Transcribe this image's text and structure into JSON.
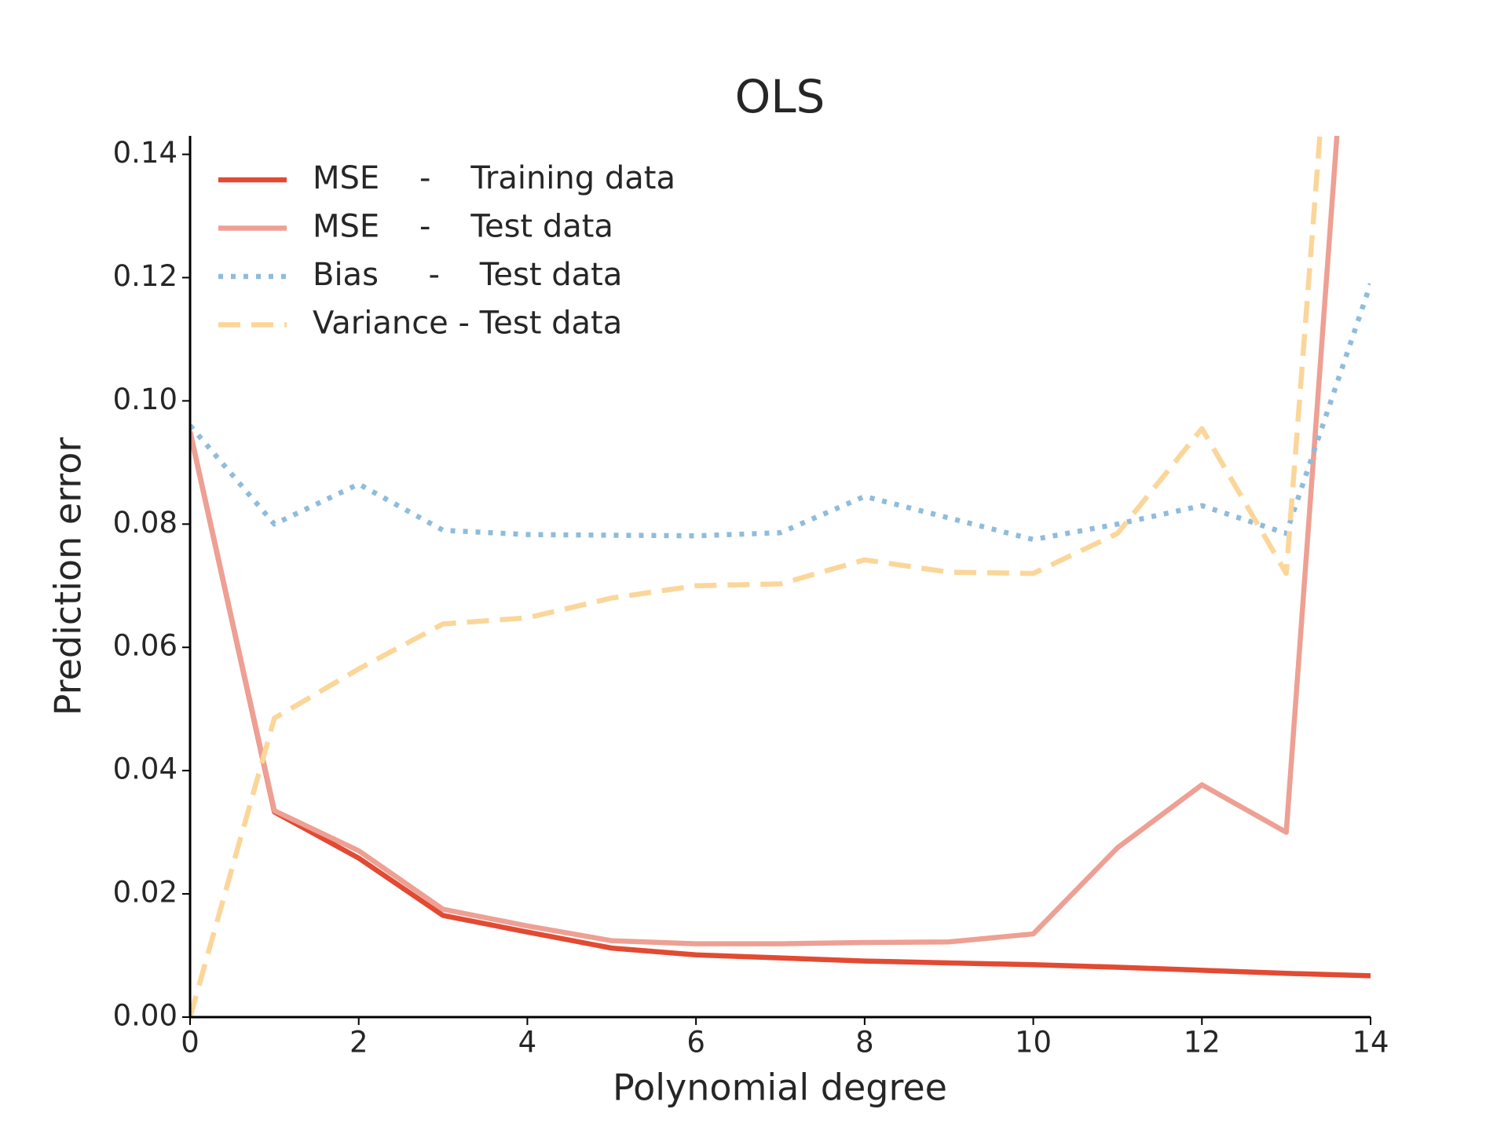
{
  "chart_data": {
    "type": "line",
    "title": "OLS",
    "x_label": "Polynomial degree",
    "y_label": "Prediction error",
    "x": [
      0,
      1,
      2,
      3,
      4,
      5,
      6,
      7,
      8,
      9,
      10,
      11,
      12,
      13,
      14
    ],
    "series": [
      {
        "name": "MSE    -    Training data",
        "color": "#e24a33",
        "dash": "solid",
        "values": [
          0.095,
          0.0333,
          0.0258,
          0.0165,
          0.0138,
          0.0112,
          0.0101,
          0.0096,
          0.0091,
          0.0088,
          0.0085,
          0.0081,
          0.0076,
          0.0071,
          0.0067
        ]
      },
      {
        "name": "MSE    -    Test data",
        "color": "#eda093",
        "dash": "solid",
        "values": [
          0.095,
          0.0335,
          0.027,
          0.0175,
          0.0148,
          0.0124,
          0.0119,
          0.0119,
          0.0121,
          0.0122,
          0.0135,
          0.0275,
          0.0377,
          0.03,
          0.218
        ]
      },
      {
        "name": "Bias     -    Test data",
        "color": "#8fbcdb",
        "dash": "dotted",
        "values": [
          0.096,
          0.08,
          0.0865,
          0.079,
          0.0783,
          0.0782,
          0.0781,
          0.0786,
          0.0845,
          0.081,
          0.0775,
          0.08,
          0.083,
          0.0785,
          0.119
        ]
      },
      {
        "name": "Variance - Test data",
        "color": "#fbd69a",
        "dash": "dashed",
        "values": [
          0,
          0.0485,
          0.0565,
          0.0638,
          0.0648,
          0.068,
          0.07,
          0.0703,
          0.0742,
          0.0722,
          0.072,
          0.0785,
          0.0955,
          0.072,
          0.25
        ]
      }
    ],
    "xlim": [
      0,
      14
    ],
    "xticks": [
      0,
      2,
      4,
      6,
      8,
      10,
      12,
      14
    ],
    "ylim": [
      0,
      0.143
    ],
    "yticks": [
      {
        "value": 0,
        "label": "0.00"
      },
      {
        "value": 0.02,
        "label": "0.02"
      },
      {
        "value": 0.04,
        "label": "0.04"
      },
      {
        "value": 0.06,
        "label": "0.06"
      },
      {
        "value": 0.08,
        "label": "0.08"
      },
      {
        "value": 0.1,
        "label": "0.10"
      },
      {
        "value": 0.12,
        "label": "0.12"
      },
      {
        "value": 0.14,
        "label": "0.14"
      }
    ],
    "grid": false,
    "legend": "upper left"
  }
}
